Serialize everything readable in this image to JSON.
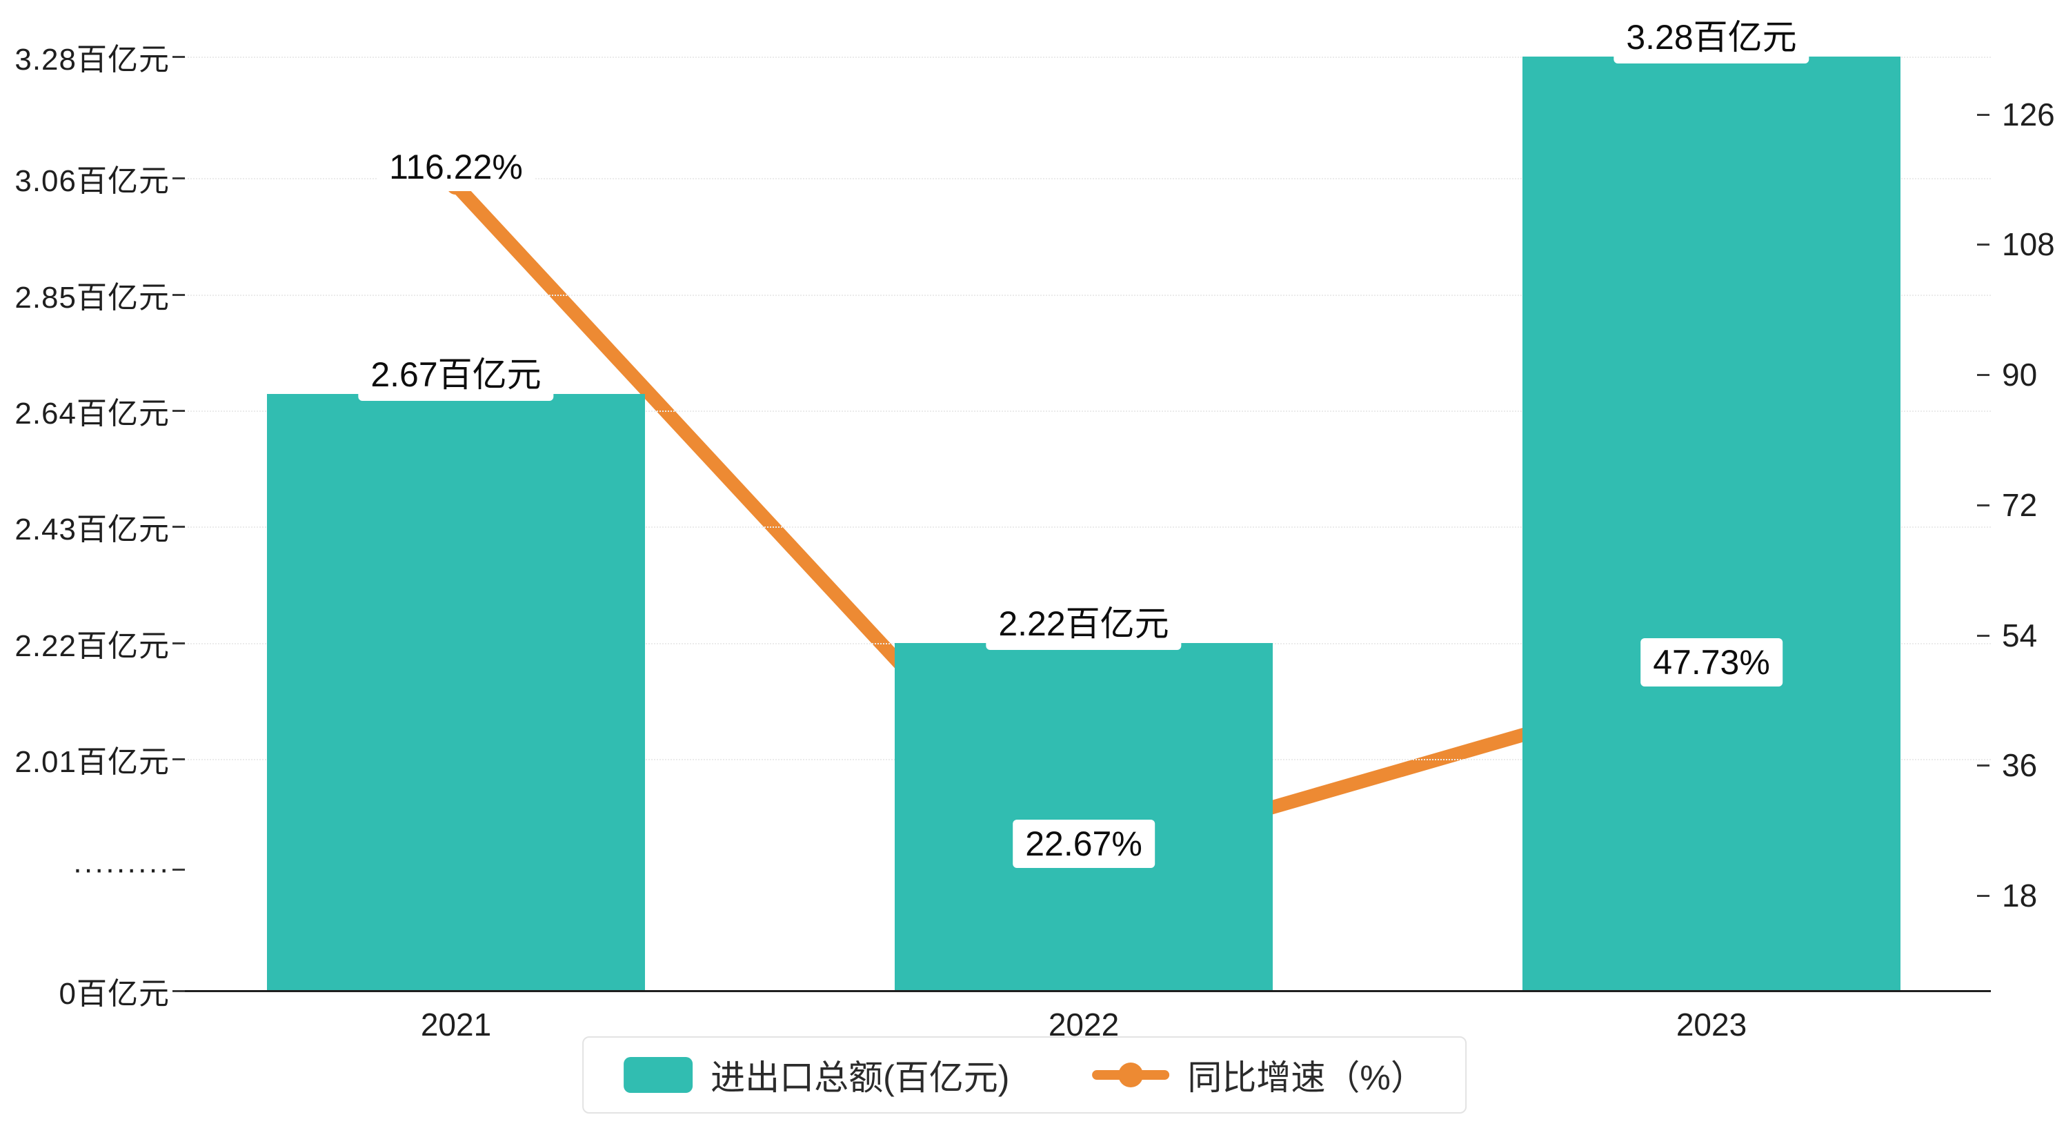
{
  "colors": {
    "bar": "#31bdb1",
    "line": "#ed8a33",
    "axis_text": "#1f1f1f",
    "background": "#ffffff"
  },
  "chart_data": {
    "type": "bar+line",
    "categories": [
      "2021",
      "2022",
      "2023"
    ],
    "series": [
      {
        "name": "进出口总额(百亿元)",
        "type": "bar",
        "values": [
          2.67,
          2.22,
          3.28
        ],
        "labels": [
          "2.67百亿元",
          "2.22百亿元",
          "3.28百亿元"
        ],
        "color": "#31bdb1"
      },
      {
        "name": "同比增速（%）",
        "type": "line",
        "values": [
          116.22,
          22.67,
          47.73
        ],
        "labels": [
          "116.22%",
          "22.67%",
          "47.73%"
        ],
        "color": "#ed8a33"
      }
    ],
    "left_axis": {
      "tick_labels": [
        "3.28百亿元",
        "3.06百亿元",
        "2.85百亿元",
        "2.64百亿元",
        "2.43百亿元",
        "2.22百亿元",
        "2.01百亿元",
        "·········",
        "0百亿元"
      ],
      "tick_values": [
        3.28,
        3.06,
        2.85,
        2.64,
        2.43,
        2.22,
        2.01,
        null,
        0
      ],
      "axis_break": true
    },
    "right_axis": {
      "tick_values": [
        126,
        108,
        90,
        72,
        54,
        36,
        18
      ]
    },
    "x_axis": {
      "tick_labels": [
        "2021",
        "2022",
        "2023"
      ]
    },
    "legend": [
      {
        "label": "进出口总额(百亿元)",
        "marker": "bar-swatch"
      },
      {
        "label": "同比增速（%）",
        "marker": "line-dot"
      }
    ],
    "grid": true,
    "legend_position": "bottom-center"
  }
}
